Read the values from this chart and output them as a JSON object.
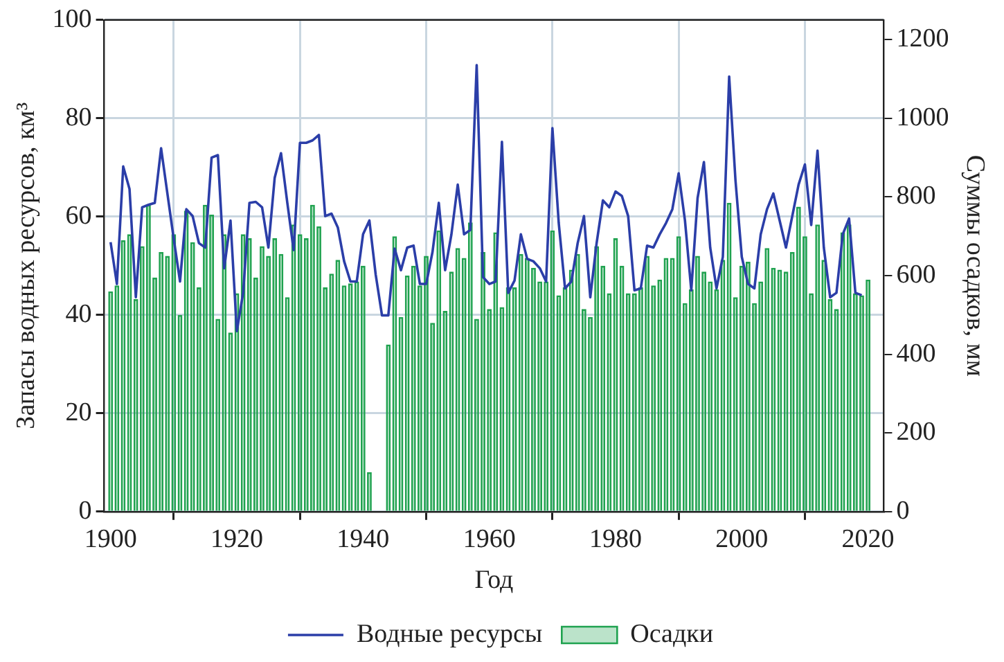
{
  "chart_data": {
    "type": "bar",
    "xlabel": "Год",
    "ylabel": "Запасы водных ресурсов, км³",
    "y2label": "Суммы осадков, мм",
    "x": [
      1900,
      1901,
      1902,
      1903,
      1904,
      1905,
      1906,
      1907,
      1908,
      1909,
      1910,
      1911,
      1912,
      1913,
      1914,
      1915,
      1916,
      1917,
      1918,
      1919,
      1920,
      1921,
      1922,
      1923,
      1924,
      1925,
      1926,
      1927,
      1928,
      1929,
      1930,
      1931,
      1932,
      1933,
      1934,
      1935,
      1936,
      1937,
      1938,
      1939,
      1940,
      1941,
      1942,
      1943,
      1944,
      1945,
      1946,
      1947,
      1948,
      1949,
      1950,
      1951,
      1952,
      1953,
      1954,
      1955,
      1956,
      1957,
      1958,
      1959,
      1960,
      1961,
      1962,
      1963,
      1964,
      1965,
      1966,
      1967,
      1968,
      1969,
      1970,
      1971,
      1972,
      1973,
      1974,
      1975,
      1976,
      1977,
      1978,
      1979,
      1980,
      1981,
      1982,
      1983,
      1984,
      1985,
      1986,
      1987,
      1988,
      1989,
      1990,
      1991,
      1992,
      1993,
      1994,
      1995,
      1996,
      1997,
      1998,
      1999,
      2000,
      2001,
      2002,
      2003,
      2004,
      2005,
      2006,
      2007,
      2008,
      2009,
      2010,
      2011,
      2012,
      2013,
      2014,
      2015,
      2016,
      2017,
      2018,
      2019,
      2020
    ],
    "series": [
      {
        "name": "Водные ресурсы",
        "type": "line",
        "color": "#2b3ea8",
        "axis": "y",
        "values": [
          54.8,
          46.3,
          70.2,
          65.6,
          43.6,
          61.9,
          62.4,
          62.8,
          73.9,
          64.7,
          55.5,
          46.8,
          61.5,
          60.1,
          54.6,
          53.7,
          72,
          72.5,
          49.5,
          59.2,
          36.7,
          44.5,
          62.8,
          63,
          61.9,
          53.7,
          67.9,
          72.9,
          62.8,
          53.2,
          75,
          75,
          75.5,
          76.6,
          60.1,
          60.6,
          57.8,
          50.9,
          46.8,
          46.8,
          56.4,
          59.2,
          48.2,
          39.9,
          39.9,
          53.5,
          49.1,
          53.7,
          54.1,
          46.3,
          46.3,
          52.8,
          62.8,
          49.1,
          56.4,
          66.5,
          56.4,
          57.3,
          90.8,
          47.7,
          46.3,
          46.8,
          75.2,
          44.5,
          47,
          56.4,
          51.4,
          50.9,
          49.5,
          46.8,
          78,
          58.7,
          45.4,
          46.8,
          54.6,
          60.1,
          43.6,
          54.6,
          63.3,
          61.9,
          65.1,
          64.2,
          60.1,
          45,
          45.4,
          54.1,
          53.7,
          56.4,
          58.7,
          61.5,
          68.8,
          59.2,
          45,
          63.8,
          71.1,
          53.7,
          45.4,
          51.8,
          88.5,
          67.4,
          51.8,
          46.3,
          45.4,
          56.4,
          61.5,
          64.7,
          59.2,
          53.7,
          60.1,
          66.5,
          70.6,
          58.3,
          73.4,
          53.7,
          43.6,
          44.5,
          56.4,
          59.6,
          44.5,
          44,
          null
        ]
      },
      {
        "name": "Осадки",
        "color": "#1fa24f",
        "axis": "y2",
        "values": [
          560,
          575,
          690,
          705,
          540,
          675,
          780,
          595,
          660,
          650,
          705,
          500,
          765,
          685,
          570,
          780,
          755,
          490,
          705,
          455,
          555,
          705,
          695,
          595,
          675,
          650,
          695,
          655,
          545,
          730,
          705,
          695,
          780,
          725,
          570,
          605,
          640,
          575,
          580,
          585,
          625,
          100,
          null,
          null,
          425,
          700,
          495,
          600,
          625,
          575,
          650,
          480,
          715,
          510,
          610,
          670,
          645,
          735,
          490,
          660,
          515,
          710,
          520,
          570,
          570,
          655,
          645,
          620,
          585,
          585,
          715,
          550,
          570,
          615,
          655,
          515,
          495,
          675,
          625,
          555,
          695,
          625,
          555,
          555,
          570,
          650,
          575,
          590,
          645,
          645,
          700,
          530,
          565,
          650,
          610,
          585,
          565,
          640,
          785,
          545,
          625,
          635,
          530,
          585,
          670,
          620,
          615,
          610,
          660,
          775,
          700,
          555,
          730,
          640,
          540,
          515,
          710,
          730,
          555,
          550,
          590
        ]
      }
    ],
    "xlim": [
      1899,
      2022.5
    ],
    "xticks": [
      1900,
      1920,
      1940,
      1960,
      1980,
      2000,
      2020
    ],
    "ylim": [
      0,
      100
    ],
    "yticks": [
      0,
      20,
      40,
      60,
      80,
      100
    ],
    "y2lim": [
      0,
      1250
    ],
    "y2ticks": [
      0,
      200,
      400,
      600,
      800,
      1000,
      1200
    ],
    "grid": true,
    "legend": "bottom",
    "marker": "none",
    "line_style": "solid"
  }
}
